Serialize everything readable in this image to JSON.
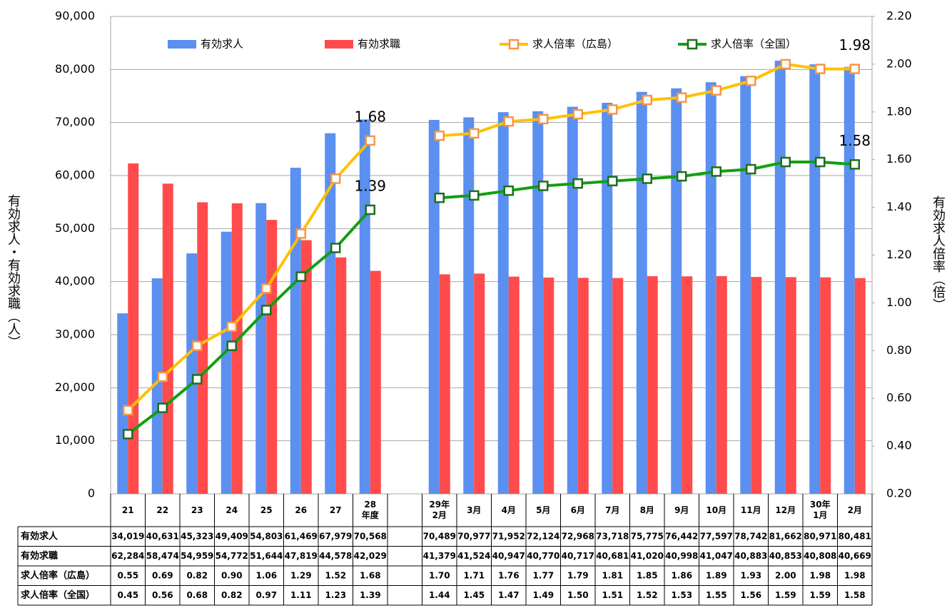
{
  "chart_data": {
    "type": "bar-line",
    "categories": [
      "21",
      "22",
      "23",
      "24",
      "25",
      "26",
      "27",
      "28\n年度",
      null,
      "29年\n2月",
      "3月",
      "4月",
      "5月",
      "6月",
      "7月",
      "8月",
      "9月",
      "10月",
      "11月",
      "12月",
      "30年\n1月",
      "2月"
    ],
    "y_label": "有効求人・有効求職（人）",
    "y2_label": "有効求人倍率（倍）",
    "ylim": [
      0,
      90000
    ],
    "yticks": [
      0,
      {
        "value": 10000,
        "label": "10,000"
      },
      {
        "value": 20000,
        "label": "20,000"
      },
      {
        "value": 30000,
        "label": "30,000"
      },
      {
        "value": 40000,
        "label": "40,000"
      },
      {
        "value": 50000,
        "label": "50,000"
      },
      {
        "value": 60000,
        "label": "60,000"
      },
      {
        "value": 70000,
        "label": "70,000"
      },
      {
        "value": 80000,
        "label": "80,000"
      },
      {
        "value": 90000,
        "label": "90,000"
      }
    ],
    "y2lim": [
      0.2,
      2.2
    ],
    "y2ticks": [
      {
        "value": 0.2,
        "label": "0.20"
      },
      {
        "value": 0.4,
        "label": "0.40"
      },
      {
        "value": 0.6,
        "label": "0.60"
      },
      {
        "value": 0.8,
        "label": "0.80"
      },
      {
        "value": 1.0,
        "label": "1.00"
      },
      {
        "value": 1.2,
        "label": "1.20"
      },
      {
        "value": 1.4,
        "label": "1.40"
      },
      {
        "value": 1.6,
        "label": "1.60"
      },
      {
        "value": 1.8,
        "label": "1.80"
      },
      {
        "value": 2.0,
        "label": "2.00"
      },
      {
        "value": 2.2,
        "label": "2.20"
      }
    ],
    "grid": true,
    "legend": "top",
    "series": [
      {
        "name": "有効求人",
        "type": "bar",
        "color": "#5b8ff0",
        "values": [
          34019,
          40631,
          45323,
          49409,
          54803,
          61469,
          67979,
          70568,
          null,
          70489,
          70977,
          71952,
          72124,
          72968,
          73718,
          75775,
          76442,
          77597,
          78742,
          81662,
          80971,
          80481
        ],
        "value_labels": [
          "34,019",
          "40,631",
          "45,323",
          "49,409",
          "54,803",
          "61,469",
          "67,979",
          "70,568",
          null,
          "70,489",
          "70,977",
          "71,952",
          "72,124",
          "72,968",
          "73,718",
          "75,775",
          "76,442",
          "77,597",
          "78,742",
          "81,662",
          "80,971",
          "80,481"
        ]
      },
      {
        "name": "有効求職",
        "type": "bar",
        "color": "#ff4b4b",
        "values": [
          62284,
          58474,
          54959,
          54772,
          51644,
          47819,
          44578,
          42029,
          null,
          41379,
          41524,
          40947,
          40770,
          40717,
          40681,
          41020,
          40998,
          41047,
          40883,
          40853,
          40808,
          40669
        ],
        "value_labels": [
          "62,284",
          "58,474",
          "54,959",
          "54,772",
          "51,644",
          "47,819",
          "44,578",
          "42,029",
          null,
          "41,379",
          "41,524",
          "40,947",
          "40,770",
          "40,717",
          "40,681",
          "41,020",
          "40,998",
          "41,047",
          "40,883",
          "40,853",
          "40,808",
          "40,669"
        ]
      },
      {
        "name": "求人倍率（広島）",
        "type": "line",
        "axis": "y2",
        "color": "#ffc000",
        "marker_color": "#f79646",
        "labeled": [
          7,
          21
        ],
        "values": [
          0.55,
          0.69,
          0.82,
          0.9,
          1.06,
          1.29,
          1.52,
          1.68,
          null,
          1.7,
          1.71,
          1.76,
          1.77,
          1.79,
          1.81,
          1.85,
          1.86,
          1.89,
          1.93,
          2.0,
          1.98,
          1.98
        ],
        "value_labels": [
          "0.55",
          "0.69",
          "0.82",
          "0.90",
          "1.06",
          "1.29",
          "1.52",
          "1.68",
          null,
          "1.70",
          "1.71",
          "1.76",
          "1.77",
          "1.79",
          "1.81",
          "1.85",
          "1.86",
          "1.89",
          "1.93",
          "2.00",
          "1.98",
          "1.98"
        ]
      },
      {
        "name": "求人倍率（全国）",
        "type": "line",
        "axis": "y2",
        "color": "#10a010",
        "marker_color": "#1e6e1e",
        "labeled": [
          7,
          21
        ],
        "values": [
          0.45,
          0.56,
          0.68,
          0.82,
          0.97,
          1.11,
          1.23,
          1.39,
          null,
          1.44,
          1.45,
          1.47,
          1.49,
          1.5,
          1.51,
          1.52,
          1.53,
          1.55,
          1.56,
          1.59,
          1.59,
          1.58
        ],
        "value_labels": [
          "0.45",
          "0.56",
          "0.68",
          "0.82",
          "0.97",
          "1.11",
          "1.23",
          "1.39",
          null,
          "1.44",
          "1.45",
          "1.47",
          "1.49",
          "1.50",
          "1.51",
          "1.52",
          "1.53",
          "1.55",
          "1.56",
          "1.59",
          "1.59",
          "1.58"
        ]
      }
    ]
  }
}
